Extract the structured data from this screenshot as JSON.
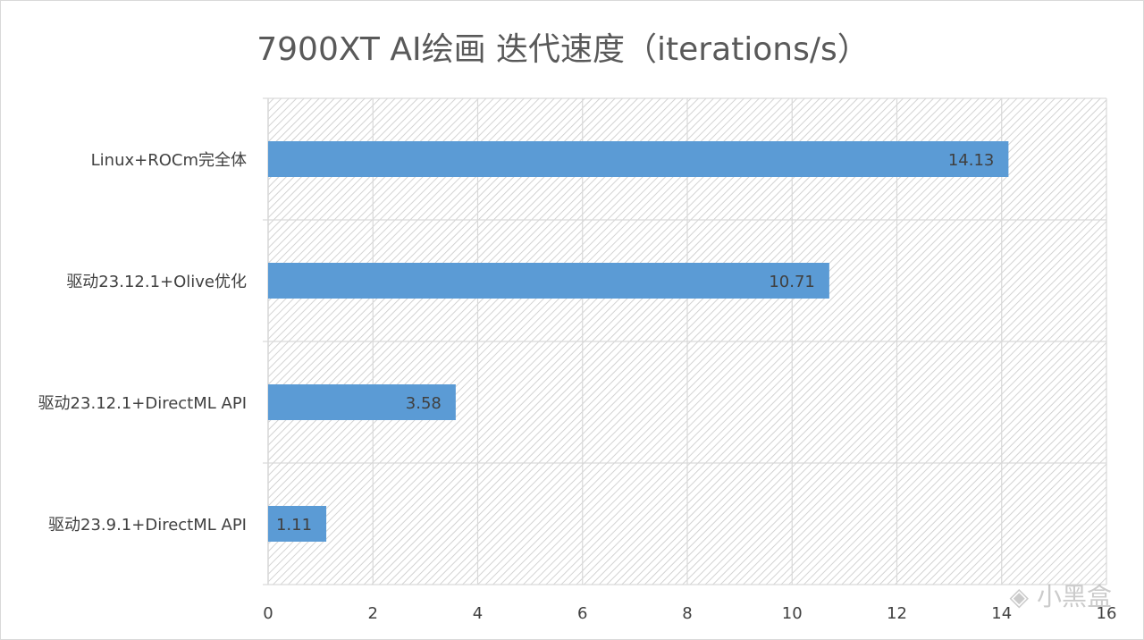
{
  "chart_data": {
    "type": "bar",
    "orientation": "horizontal",
    "title": "7900XT AI绘画  迭代速度（iterations/s）",
    "categories": [
      "Linux+ROCm完全体",
      "驱动23.12.1+Olive优化",
      "驱动23.12.1+DirectML API",
      "驱动23.9.1+DirectML API"
    ],
    "values": [
      14.13,
      10.71,
      3.58,
      1.11
    ],
    "data_labels": [
      "14.13",
      "10.71",
      "3.58",
      "1.11"
    ],
    "xlim": [
      0,
      16
    ],
    "xticks": [
      0,
      2,
      4,
      6,
      8,
      10,
      12,
      14,
      16
    ],
    "xlabel": "",
    "ylabel": "",
    "grid": true,
    "legend": "none",
    "bar_color": "#5b9bd5",
    "plot_background": "hatched-gray"
  },
  "watermark": {
    "text": "小黑盒",
    "icon": "heybox-logo-icon"
  }
}
